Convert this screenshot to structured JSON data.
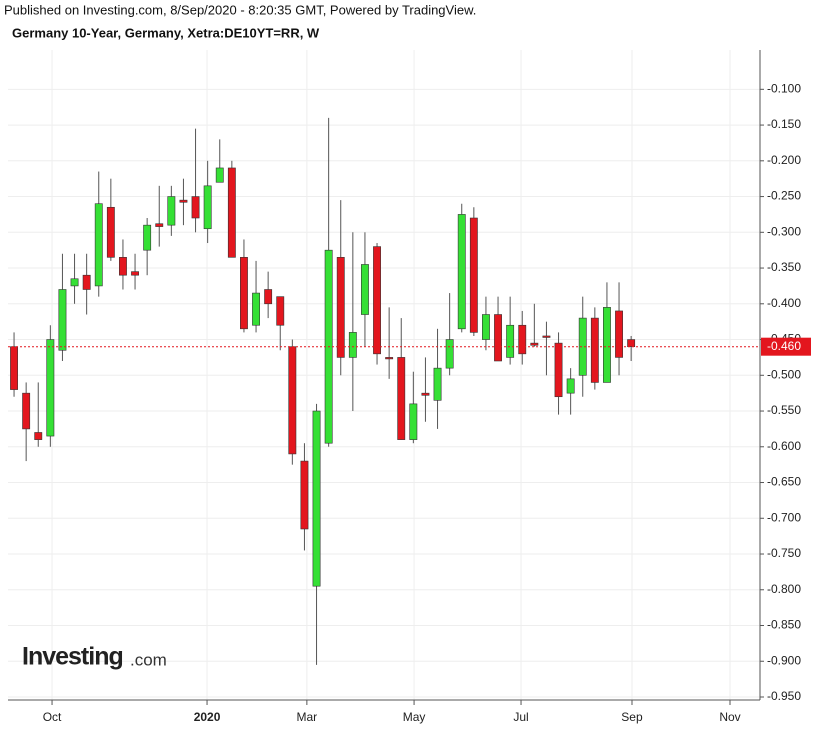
{
  "header": {
    "published": "Published on Investing.com, 8/Sep/2020 - 8:20:35 GMT, Powered by TradingView.",
    "symbol": "Germany 10-Year, Germany, Xetra:DE10YT=RR, W"
  },
  "logo": {
    "name": "Investing",
    "suffix": ".com"
  },
  "chart_data": {
    "type": "candlestick",
    "categories": [
      null,
      null,
      null,
      null,
      null,
      null,
      null,
      null,
      null,
      null,
      null,
      null,
      null,
      null,
      null,
      null,
      null,
      null,
      null,
      null,
      null,
      null,
      null,
      null,
      null,
      null,
      null,
      null,
      null,
      null,
      null,
      null,
      null,
      null,
      null,
      null,
      null,
      null,
      null,
      null,
      null,
      null,
      null,
      null,
      null,
      null,
      null,
      null,
      null,
      null,
      null,
      null
    ],
    "open": [
      -0.46,
      -0.525,
      -0.58,
      -0.585,
      -0.465,
      -0.375,
      -0.36,
      -0.375,
      -0.265,
      -0.335,
      -0.355,
      -0.325,
      -0.288,
      -0.29,
      -0.255,
      -0.25,
      -0.295,
      -0.23,
      -0.21,
      -0.335,
      -0.43,
      -0.38,
      -0.39,
      -0.46,
      -0.62,
      -0.795,
      -0.595,
      -0.335,
      -0.475,
      -0.415,
      -0.32,
      -0.475,
      -0.475,
      -0.59,
      -0.525,
      -0.535,
      -0.49,
      -0.435,
      -0.28,
      -0.45,
      -0.415,
      -0.475,
      -0.43,
      -0.455,
      -0.445,
      -0.455,
      -0.525,
      -0.5,
      -0.42,
      -0.51,
      -0.41,
      -0.45
    ],
    "high": [
      -0.44,
      -0.51,
      -0.51,
      -0.43,
      -0.33,
      -0.33,
      -0.33,
      -0.215,
      -0.225,
      -0.31,
      -0.33,
      -0.28,
      -0.235,
      -0.235,
      -0.225,
      -0.155,
      -0.2,
      -0.17,
      -0.2,
      -0.31,
      -0.34,
      -0.355,
      -0.39,
      -0.45,
      -0.595,
      -0.54,
      -0.14,
      -0.255,
      -0.3,
      -0.3,
      -0.315,
      -0.405,
      -0.42,
      -0.495,
      -0.475,
      -0.435,
      -0.385,
      -0.26,
      -0.265,
      -0.39,
      -0.39,
      -0.39,
      -0.41,
      -0.4,
      -0.425,
      -0.44,
      -0.49,
      -0.39,
      -0.405,
      -0.37,
      -0.37,
      -0.445
    ],
    "low": [
      -0.53,
      -0.62,
      -0.6,
      -0.6,
      -0.48,
      -0.4,
      -0.415,
      -0.39,
      -0.34,
      -0.38,
      -0.38,
      -0.36,
      -0.32,
      -0.305,
      -0.29,
      -0.3,
      -0.315,
      -0.23,
      -0.335,
      -0.44,
      -0.44,
      -0.42,
      -0.465,
      -0.625,
      -0.745,
      -0.905,
      -0.6,
      -0.5,
      -0.55,
      -0.46,
      -0.485,
      -0.505,
      -0.59,
      -0.595,
      -0.565,
      -0.575,
      -0.5,
      -0.44,
      -0.445,
      -0.465,
      -0.48,
      -0.485,
      -0.485,
      -0.46,
      -0.5,
      -0.555,
      -0.555,
      -0.53,
      -0.52,
      -0.51,
      -0.5,
      -0.48
    ],
    "close": [
      -0.52,
      -0.575,
      -0.59,
      -0.45,
      -0.38,
      -0.365,
      -0.38,
      -0.26,
      -0.335,
      -0.36,
      -0.36,
      -0.29,
      -0.292,
      -0.25,
      -0.258,
      -0.28,
      -0.235,
      -0.21,
      -0.335,
      -0.435,
      -0.385,
      -0.4,
      -0.43,
      -0.61,
      -0.715,
      -0.55,
      -0.325,
      -0.475,
      -0.44,
      -0.345,
      -0.47,
      -0.477,
      -0.59,
      -0.54,
      -0.528,
      -0.49,
      -0.45,
      -0.275,
      -0.44,
      -0.415,
      -0.48,
      -0.43,
      -0.47,
      -0.458,
      -0.447,
      -0.53,
      -0.505,
      -0.42,
      -0.51,
      -0.405,
      -0.475,
      -0.46
    ],
    "up_color": "#35e035",
    "down_color": "#e3161e",
    "xlim": [
      -0.5,
      61.65
    ],
    "xticks": [
      {
        "value": 3.14,
        "label": "Oct"
      },
      {
        "value": 15.95,
        "label": "2020"
      },
      {
        "value": 24.2,
        "label": "Mar"
      },
      {
        "value": 33.06,
        "label": "May"
      },
      {
        "value": 41.9,
        "label": "Jul"
      },
      {
        "value": 51.07,
        "label": "Sep"
      },
      {
        "value": 59.17,
        "label": "Nov"
      }
    ],
    "ylim": [
      -0.95,
      -0.045
    ],
    "yticks": [
      {
        "value": -0.1,
        "label": "-0.100"
      },
      {
        "value": -0.15,
        "label": "-0.150"
      },
      {
        "value": -0.2,
        "label": "-0.200"
      },
      {
        "value": -0.25,
        "label": "-0.250"
      },
      {
        "value": -0.3,
        "label": "-0.300"
      },
      {
        "value": -0.35,
        "label": "-0.350"
      },
      {
        "value": -0.4,
        "label": "-0.400"
      },
      {
        "value": -0.45,
        "label": "-0.450"
      },
      {
        "value": -0.5,
        "label": "-0.500"
      },
      {
        "value": -0.55,
        "label": "-0.550"
      },
      {
        "value": -0.6,
        "label": "-0.600"
      },
      {
        "value": -0.65,
        "label": "-0.650"
      },
      {
        "value": -0.7,
        "label": "-0.700"
      },
      {
        "value": -0.75,
        "label": "-0.750"
      },
      {
        "value": -0.8,
        "label": "-0.800"
      },
      {
        "value": -0.85,
        "label": "-0.850"
      },
      {
        "value": -0.9,
        "label": "-0.900"
      },
      {
        "value": -0.95,
        "label": "-0.950"
      }
    ],
    "last_price": {
      "value": -0.46,
      "label": "-0.460"
    },
    "grid": true,
    "y_axis_side": "right"
  }
}
